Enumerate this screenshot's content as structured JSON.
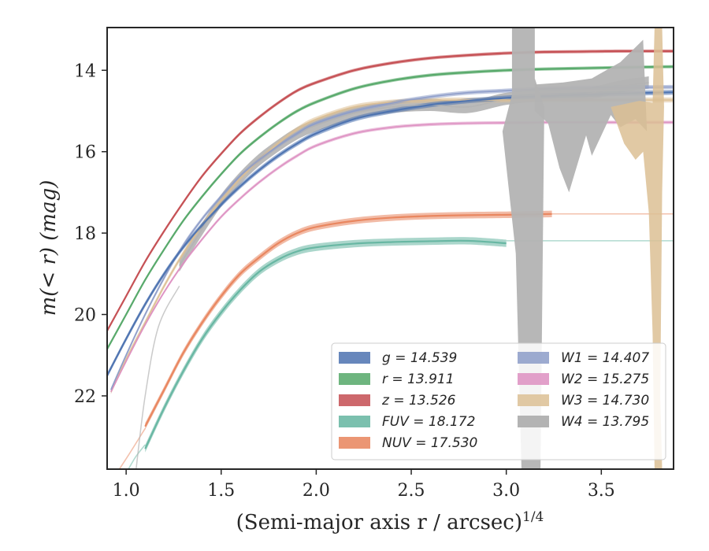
{
  "chart_data": {
    "type": "line",
    "xlabel": "(Semi-major axis r / arcsec)",
    "xlabel_exponent": "1/4",
    "ylabel": "m(< r) (mag)",
    "xlim": [
      0.9,
      3.88
    ],
    "ylim": [
      23.8,
      12.95
    ],
    "y_inverted": true,
    "x_ticks": [
      "1.0",
      "1.5",
      "2.0",
      "2.5",
      "3.0",
      "3.5"
    ],
    "y_ticks": [
      "14",
      "16",
      "18",
      "20",
      "22"
    ],
    "legend_location": "lower-right",
    "grid": false,
    "series": [
      {
        "name": "g = 14.539",
        "color": "#4c72b0",
        "kind": "band",
        "width": 0.12,
        "x": [
          0.9,
          1.0,
          1.1,
          1.2,
          1.3,
          1.4,
          1.5,
          1.6,
          1.7,
          1.8,
          1.9,
          2.0,
          2.2,
          2.4,
          2.6,
          2.8,
          3.0,
          3.2,
          3.4,
          3.6,
          3.88
        ],
        "y": [
          21.5,
          20.6,
          19.75,
          19.0,
          18.35,
          17.8,
          17.3,
          16.85,
          16.45,
          16.1,
          15.8,
          15.55,
          15.2,
          15.0,
          14.85,
          14.75,
          14.68,
          14.63,
          14.6,
          14.57,
          14.54
        ]
      },
      {
        "name": "r = 13.911",
        "color": "#55a868",
        "kind": "band",
        "width": 0.08,
        "x": [
          0.9,
          1.0,
          1.1,
          1.2,
          1.3,
          1.4,
          1.5,
          1.6,
          1.7,
          1.8,
          1.9,
          2.0,
          2.2,
          2.4,
          2.6,
          2.8,
          3.0,
          3.2,
          3.4,
          3.6,
          3.88
        ],
        "y": [
          20.85,
          20.0,
          19.15,
          18.4,
          17.7,
          17.1,
          16.55,
          16.05,
          15.65,
          15.3,
          15.0,
          14.78,
          14.45,
          14.25,
          14.12,
          14.05,
          14.0,
          13.97,
          13.95,
          13.93,
          13.91
        ]
      },
      {
        "name": "z = 13.526",
        "color": "#c44e52",
        "kind": "band",
        "width": 0.08,
        "x": [
          0.9,
          1.0,
          1.1,
          1.2,
          1.3,
          1.4,
          1.5,
          1.6,
          1.7,
          1.8,
          1.9,
          2.0,
          2.2,
          2.4,
          2.6,
          2.8,
          3.0,
          3.2,
          3.4,
          3.6,
          3.88
        ],
        "y": [
          20.4,
          19.55,
          18.7,
          17.95,
          17.25,
          16.6,
          16.05,
          15.55,
          15.15,
          14.8,
          14.5,
          14.3,
          14.0,
          13.82,
          13.7,
          13.63,
          13.58,
          13.55,
          13.54,
          13.53,
          13.53
        ]
      },
      {
        "name": "FUV = 18.172",
        "color": "#64b5a0",
        "kind": "band",
        "width": 0.18,
        "x": [
          1.1,
          1.2,
          1.3,
          1.4,
          1.5,
          1.6,
          1.7,
          1.8,
          1.9,
          2.0,
          2.2,
          2.4,
          2.6,
          2.8,
          3.0
        ],
        "y": [
          23.3,
          22.3,
          21.4,
          20.6,
          19.95,
          19.4,
          18.95,
          18.65,
          18.45,
          18.35,
          18.26,
          18.22,
          18.2,
          18.19,
          18.25
        ]
      },
      {
        "name": "NUV = 17.530",
        "color": "#e8845c",
        "kind": "band",
        "width": 0.16,
        "x": [
          1.1,
          1.2,
          1.3,
          1.4,
          1.5,
          1.6,
          1.7,
          1.8,
          1.9,
          2.0,
          2.2,
          2.4,
          2.6,
          2.8,
          3.0,
          3.24
        ],
        "y": [
          22.75,
          21.85,
          20.95,
          20.2,
          19.55,
          19.0,
          18.6,
          18.25,
          18.0,
          17.85,
          17.7,
          17.62,
          17.58,
          17.56,
          17.55,
          17.53
        ]
      },
      {
        "name": "W1 = 14.407",
        "color": "#8c9cc8",
        "kind": "band",
        "width": 0.1,
        "x": [
          0.92,
          1.0,
          1.1,
          1.2,
          1.3,
          1.4,
          1.5,
          1.6,
          1.7,
          1.8,
          1.9,
          2.0,
          2.2,
          2.4,
          2.6,
          2.8,
          3.0,
          3.2,
          3.4,
          3.6,
          3.88
        ],
        "y": [
          21.85,
          21.0,
          20.0,
          19.1,
          18.3,
          17.65,
          17.1,
          16.6,
          16.2,
          15.85,
          15.55,
          15.3,
          15.0,
          14.8,
          14.65,
          14.55,
          14.5,
          14.45,
          14.43,
          14.42,
          14.41
        ]
      },
      {
        "name": "W2 = 15.275",
        "color": "#dd8fc1",
        "kind": "band",
        "width": 0.08,
        "x": [
          0.92,
          1.0,
          1.1,
          1.2,
          1.3,
          1.4,
          1.5,
          1.6,
          1.7,
          1.8,
          1.9,
          2.0,
          2.2,
          2.4,
          2.6,
          2.8,
          3.0,
          3.2,
          3.4,
          3.6,
          3.88
        ],
        "y": [
          21.9,
          21.15,
          20.25,
          19.45,
          18.75,
          18.15,
          17.6,
          17.15,
          16.75,
          16.4,
          16.1,
          15.85,
          15.55,
          15.4,
          15.33,
          15.3,
          15.29,
          15.28,
          15.28,
          15.28,
          15.28
        ]
      },
      {
        "name": "W3 = 14.730",
        "color": "#dcbf94",
        "kind": "band",
        "width": 0.12,
        "x": [
          0.92,
          1.0,
          1.1,
          1.2,
          1.3,
          1.4,
          1.5,
          1.6,
          1.7,
          1.8,
          1.9,
          2.0,
          2.2,
          2.4,
          2.6,
          2.8,
          3.0,
          3.2,
          3.4,
          3.6,
          3.88
        ],
        "y": [
          21.9,
          21.1,
          20.2,
          19.3,
          18.5,
          17.8,
          17.2,
          16.65,
          16.2,
          15.8,
          15.45,
          15.2,
          14.9,
          14.78,
          14.74,
          14.73,
          14.73,
          14.73,
          14.73,
          14.73,
          14.73
        ]
      },
      {
        "name": "W4 = 13.795",
        "color": "#b3b3b3",
        "kind": "band",
        "width": 0.3,
        "x": [
          1.28,
          1.4,
          1.5,
          1.6,
          1.7,
          1.8,
          1.9,
          2.0,
          2.2,
          2.4,
          2.6,
          2.8,
          3.0,
          3.2,
          3.4,
          3.6,
          3.75
        ],
        "y": [
          18.8,
          17.9,
          17.2,
          16.65,
          16.2,
          15.85,
          15.55,
          15.35,
          15.05,
          14.9,
          14.85,
          14.9,
          14.7,
          14.6,
          14.6,
          14.4,
          14.3
        ]
      }
    ]
  }
}
